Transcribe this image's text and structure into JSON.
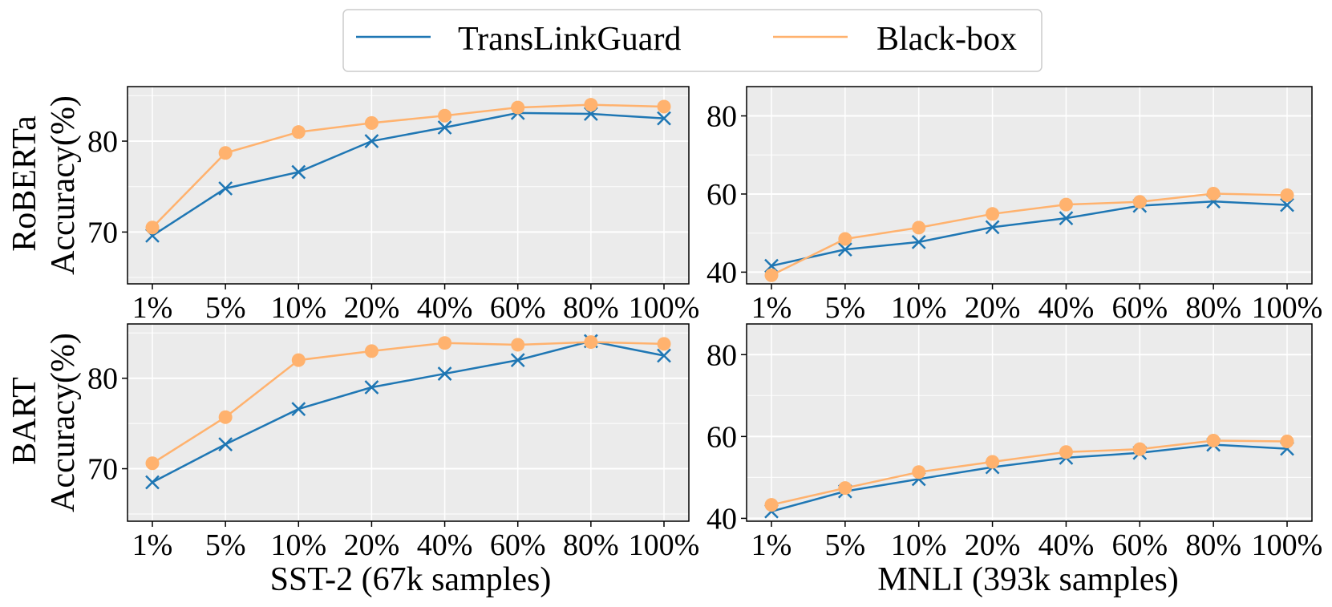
{
  "colors": {
    "translinkguard": "#1f77b4",
    "blackbox": "#ffb26e",
    "panel_bg": "#ebebeb",
    "grid": "#ffffff"
  },
  "legend": {
    "entries": [
      {
        "label": "TransLinkGuard",
        "marker": "x-marker-icon"
      },
      {
        "label": "Black-box",
        "marker": "circle-marker-icon"
      }
    ],
    "placement": "top-center"
  },
  "row_labels": [
    "RoBERTa",
    "BART"
  ],
  "column_xlabels": [
    "SST-2 (67k samples)",
    "MNLI (393k samples)"
  ],
  "chart_data": [
    {
      "type": "line",
      "model": "RoBERTa",
      "dataset": "SST-2 (67k samples)",
      "ylabel": "Accuracy(%)",
      "xlabel": "",
      "categories": [
        "1%",
        "5%",
        "10%",
        "20%",
        "40%",
        "60%",
        "80%",
        "100%"
      ],
      "ylim": [
        64.3,
        86.0
      ],
      "yticks": [
        70,
        80
      ],
      "grid": true,
      "series": [
        {
          "name": "TransLinkGuard",
          "values": [
            69.6,
            74.8,
            76.6,
            80.0,
            81.5,
            83.1,
            83.0,
            82.5
          ]
        },
        {
          "name": "Black-box",
          "values": [
            70.5,
            78.7,
            81.0,
            82.0,
            82.8,
            83.7,
            84.0,
            83.8
          ]
        }
      ]
    },
    {
      "type": "line",
      "model": "RoBERTa",
      "dataset": "MNLI (393k samples)",
      "ylabel": "",
      "xlabel": "",
      "categories": [
        "1%",
        "5%",
        "10%",
        "20%",
        "40%",
        "60%",
        "80%",
        "100%"
      ],
      "ylim": [
        37.0,
        87.5
      ],
      "yticks": [
        40,
        60,
        80
      ],
      "grid": true,
      "series": [
        {
          "name": "TransLinkGuard",
          "values": [
            41.6,
            45.8,
            47.7,
            51.5,
            53.8,
            57.0,
            58.1,
            57.2
          ]
        },
        {
          "name": "Black-box",
          "values": [
            39.2,
            48.5,
            51.4,
            54.9,
            57.3,
            58.0,
            60.1,
            59.7
          ]
        }
      ]
    },
    {
      "type": "line",
      "model": "BART",
      "dataset": "SST-2 (67k samples)",
      "ylabel": "Accuracy(%)",
      "xlabel": "SST-2 (67k samples)",
      "categories": [
        "1%",
        "5%",
        "10%",
        "20%",
        "40%",
        "60%",
        "80%",
        "100%"
      ],
      "ylim": [
        64.2,
        86.0
      ],
      "yticks": [
        70,
        80
      ],
      "grid": true,
      "series": [
        {
          "name": "TransLinkGuard",
          "values": [
            68.5,
            72.7,
            76.6,
            79.0,
            80.5,
            82.0,
            84.1,
            82.5
          ]
        },
        {
          "name": "Black-box",
          "values": [
            70.6,
            75.7,
            82.0,
            83.0,
            83.9,
            83.7,
            84.0,
            83.8
          ]
        }
      ]
    },
    {
      "type": "line",
      "model": "BART",
      "dataset": "MNLI (393k samples)",
      "ylabel": "",
      "xlabel": "MNLI (393k samples)",
      "categories": [
        "1%",
        "5%",
        "10%",
        "20%",
        "40%",
        "60%",
        "80%",
        "100%"
      ],
      "ylim": [
        39.3,
        87.5
      ],
      "yticks": [
        40,
        60,
        80
      ],
      "grid": true,
      "series": [
        {
          "name": "TransLinkGuard",
          "values": [
            41.7,
            46.6,
            49.6,
            52.5,
            54.8,
            56.0,
            58.0,
            57.0
          ]
        },
        {
          "name": "Black-box",
          "values": [
            43.3,
            47.4,
            51.3,
            53.8,
            56.2,
            56.9,
            59.0,
            58.8
          ]
        }
      ]
    }
  ]
}
